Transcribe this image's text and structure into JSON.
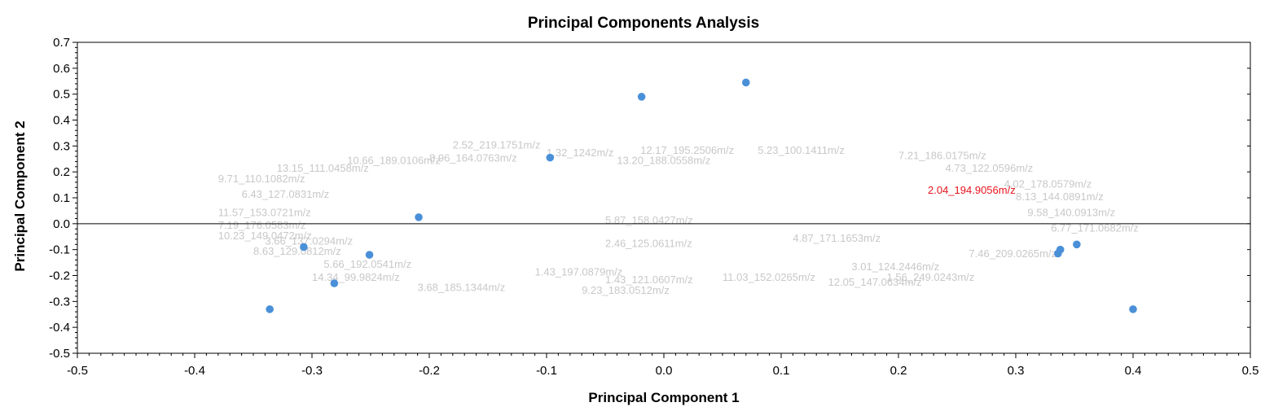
{
  "chart_data": {
    "type": "scatter",
    "title": "Principal Components Analysis",
    "xlabel": "Principal Component 1",
    "ylabel": "Principal Component 2",
    "xlim": [
      -0.5,
      0.5
    ],
    "ylim": [
      -0.5,
      0.7
    ],
    "xticks": [
      -0.5,
      -0.4,
      -0.3,
      -0.2,
      -0.1,
      0.0,
      0.1,
      0.2,
      0.3,
      0.4,
      0.5
    ],
    "yticks": [
      -0.5,
      -0.4,
      -0.3,
      -0.2,
      -0.1,
      0.0,
      0.1,
      0.2,
      0.3,
      0.4,
      0.5,
      0.6,
      0.7
    ],
    "grid": false,
    "zero_line": true,
    "point_color": "#4a90d9",
    "loading_label_color": "#c8c8c8",
    "highlight_color": "#e8141c",
    "scores": [
      {
        "x": -0.336,
        "y": -0.33
      },
      {
        "x": -0.307,
        "y": -0.09
      },
      {
        "x": -0.281,
        "y": -0.23
      },
      {
        "x": -0.251,
        "y": -0.12
      },
      {
        "x": -0.209,
        "y": 0.025
      },
      {
        "x": -0.097,
        "y": 0.255
      },
      {
        "x": -0.019,
        "y": 0.49
      },
      {
        "x": 0.07,
        "y": 0.545
      },
      {
        "x": 0.336,
        "y": -0.115
      },
      {
        "x": 0.338,
        "y": -0.1
      },
      {
        "x": 0.352,
        "y": -0.08
      },
      {
        "x": 0.4,
        "y": -0.33
      }
    ],
    "loadings": [
      {
        "x": -0.18,
        "y": 0.29,
        "label": "2.52_219.1751m/z"
      },
      {
        "x": -0.1,
        "y": 0.26,
        "label": "1.32_1242m/z"
      },
      {
        "x": -0.02,
        "y": 0.27,
        "label": "12.17_195.2506m/z"
      },
      {
        "x": 0.08,
        "y": 0.27,
        "label": "5.23_100.1411m/z"
      },
      {
        "x": 0.2,
        "y": 0.25,
        "label": "7.21_186.0175m/z"
      },
      {
        "x": -0.27,
        "y": 0.23,
        "label": "10.66_189.0106m/z"
      },
      {
        "x": -0.2,
        "y": 0.24,
        "label": "8.96_164.0763m/z"
      },
      {
        "x": -0.04,
        "y": 0.23,
        "label": "13.20_188.0558m/z"
      },
      {
        "x": 0.24,
        "y": 0.2,
        "label": "4.73_122.0596m/z"
      },
      {
        "x": -0.33,
        "y": 0.2,
        "label": "13.15_111.0458m/z"
      },
      {
        "x": -0.38,
        "y": 0.16,
        "label": "9.71_110.1082m/z"
      },
      {
        "x": 0.29,
        "y": 0.14,
        "label": "4.02_178.0579m/z"
      },
      {
        "x": -0.36,
        "y": 0.1,
        "label": "6.43_127.0831m/z"
      },
      {
        "x": 0.3,
        "y": 0.09,
        "label": "8.13_144.0891m/z"
      },
      {
        "x": -0.38,
        "y": 0.03,
        "label": "11.57_153.0721m/z"
      },
      {
        "x": 0.31,
        "y": 0.03,
        "label": "9.58_140.0913m/z"
      },
      {
        "x": -0.05,
        "y": 0.0,
        "label": "5.87_158.0427m/z"
      },
      {
        "x": -0.38,
        "y": -0.02,
        "label": "7.19_176.0583m/z"
      },
      {
        "x": 0.33,
        "y": -0.03,
        "label": "6.77_171.0682m/z"
      },
      {
        "x": -0.38,
        "y": -0.06,
        "label": "10.23_149.0472m/z"
      },
      {
        "x": -0.34,
        "y": -0.08,
        "label": "3.66_137.0294m/z"
      },
      {
        "x": -0.05,
        "y": -0.09,
        "label": "2.46_125.0611m/z"
      },
      {
        "x": 0.11,
        "y": -0.07,
        "label": "4.87_171.1653m/z"
      },
      {
        "x": -0.35,
        "y": -0.12,
        "label": "8.63_129.0812m/z"
      },
      {
        "x": 0.26,
        "y": -0.13,
        "label": "7.46_209.0265m/z"
      },
      {
        "x": -0.29,
        "y": -0.17,
        "label": "5.66_192.0541m/z"
      },
      {
        "x": -0.11,
        "y": -0.2,
        "label": "1.43_197.0879m/z"
      },
      {
        "x": 0.16,
        "y": -0.18,
        "label": "3.01_124.2446m/z"
      },
      {
        "x": -0.3,
        "y": -0.22,
        "label": "14.34_99.9824m/z"
      },
      {
        "x": -0.05,
        "y": -0.23,
        "label": "1.43_121.0607m/z"
      },
      {
        "x": 0.05,
        "y": -0.22,
        "label": "11.03_152.0265m/z"
      },
      {
        "x": 0.14,
        "y": -0.24,
        "label": "12.05_147.0634m/z"
      },
      {
        "x": 0.19,
        "y": -0.22,
        "label": "1.56_249.0243m/z"
      },
      {
        "x": -0.21,
        "y": -0.26,
        "label": "3.68_185.1344m/z"
      },
      {
        "x": -0.07,
        "y": -0.27,
        "label": "9.23_183.0512m/z"
      }
    ],
    "highlighted_loading": {
      "x": 0.225,
      "y": 0.115,
      "label": "2.04_194.9056m/z"
    }
  }
}
